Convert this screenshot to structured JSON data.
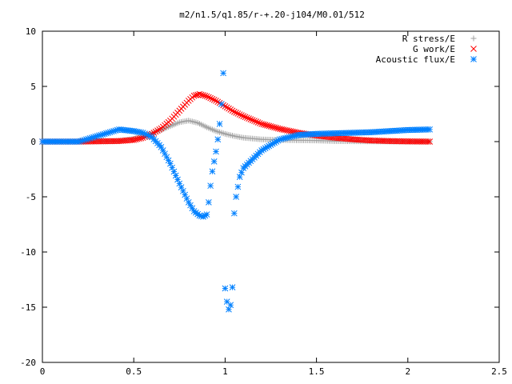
{
  "chart_data": {
    "type": "scatter",
    "title": "m2/n1.5/q1.85/r-+.20-j104/M0.01/512",
    "xlabel": "",
    "ylabel": "",
    "xlim": [
      0,
      2.5
    ],
    "ylim": [
      -20,
      10
    ],
    "xticks": [
      0,
      0.5,
      1,
      1.5,
      2,
      2.5
    ],
    "xtick_labels": [
      "0",
      "0.5",
      "1",
      "1.5",
      "2",
      "2.5"
    ],
    "yticks": [
      -20,
      -15,
      -10,
      -5,
      0,
      5,
      10
    ],
    "ytick_labels": [
      "-20",
      "-15",
      "-10",
      "-5",
      "0",
      "5",
      "10"
    ],
    "grid": false,
    "legend_position": "top-right",
    "series": [
      {
        "name": "R stress/E",
        "marker": "plus",
        "color": "#a0a0a0",
        "x": [
          0.0,
          0.2,
          0.42,
          0.5,
          0.55,
          0.6,
          0.65,
          0.7,
          0.75,
          0.8,
          0.85,
          0.9,
          0.95,
          1.0,
          1.05,
          1.1,
          1.2,
          1.3,
          1.4,
          1.5,
          1.6,
          1.7,
          1.8,
          1.9,
          2.0,
          2.12
        ],
        "y": [
          0,
          0,
          0.05,
          0.25,
          0.45,
          0.75,
          1.05,
          1.4,
          1.75,
          1.9,
          1.7,
          1.3,
          0.95,
          0.7,
          0.5,
          0.35,
          0.2,
          0.15,
          0.12,
          0.1,
          0.05,
          0.03,
          0.02,
          0.01,
          0.0,
          0.0
        ]
      },
      {
        "name": "G work/E",
        "marker": "cross",
        "color": "#ff0000",
        "x": [
          0.0,
          0.2,
          0.42,
          0.5,
          0.55,
          0.6,
          0.65,
          0.7,
          0.75,
          0.8,
          0.83,
          0.86,
          0.9,
          0.95,
          1.0,
          1.05,
          1.1,
          1.2,
          1.3,
          1.4,
          1.5,
          1.6,
          1.7,
          1.8,
          1.9,
          2.0,
          2.12
        ],
        "y": [
          0,
          0,
          0.05,
          0.15,
          0.35,
          0.7,
          1.2,
          1.9,
          2.8,
          3.7,
          4.15,
          4.3,
          4.1,
          3.7,
          3.2,
          2.7,
          2.3,
          1.6,
          1.15,
          0.8,
          0.55,
          0.35,
          0.2,
          0.1,
          0.05,
          0.02,
          0.0
        ]
      },
      {
        "name": "Acoustic flux/E",
        "marker": "star",
        "color": "#0080ff",
        "x": [
          0.0,
          0.2,
          0.42,
          0.5,
          0.55,
          0.6,
          0.65,
          0.7,
          0.75,
          0.8,
          0.83,
          0.86,
          0.88,
          0.9,
          0.91,
          0.92,
          0.93,
          0.94,
          0.95,
          0.96,
          0.97,
          0.98,
          0.99,
          1.0,
          1.01,
          1.02,
          1.03,
          1.04,
          1.05,
          1.06,
          1.08,
          1.1,
          1.15,
          1.2,
          1.3,
          1.4,
          1.5,
          1.6,
          1.7,
          1.8,
          1.9,
          2.0,
          2.12
        ],
        "y": [
          0,
          0,
          1.1,
          0.95,
          0.8,
          0.4,
          -0.5,
          -2,
          -3.8,
          -5.5,
          -6.3,
          -6.7,
          -6.8,
          -6.6,
          -5.5,
          -4,
          -2.7,
          -1.8,
          -0.9,
          0.2,
          1.6,
          3.4,
          6.2,
          -13.3,
          -14.5,
          -15.2,
          -14.8,
          -13.2,
          -6.5,
          -5,
          -3.2,
          -2.4,
          -1.6,
          -0.8,
          0.2,
          0.6,
          0.7,
          0.75,
          0.8,
          0.85,
          0.95,
          1.05,
          1.1
        ]
      }
    ]
  }
}
